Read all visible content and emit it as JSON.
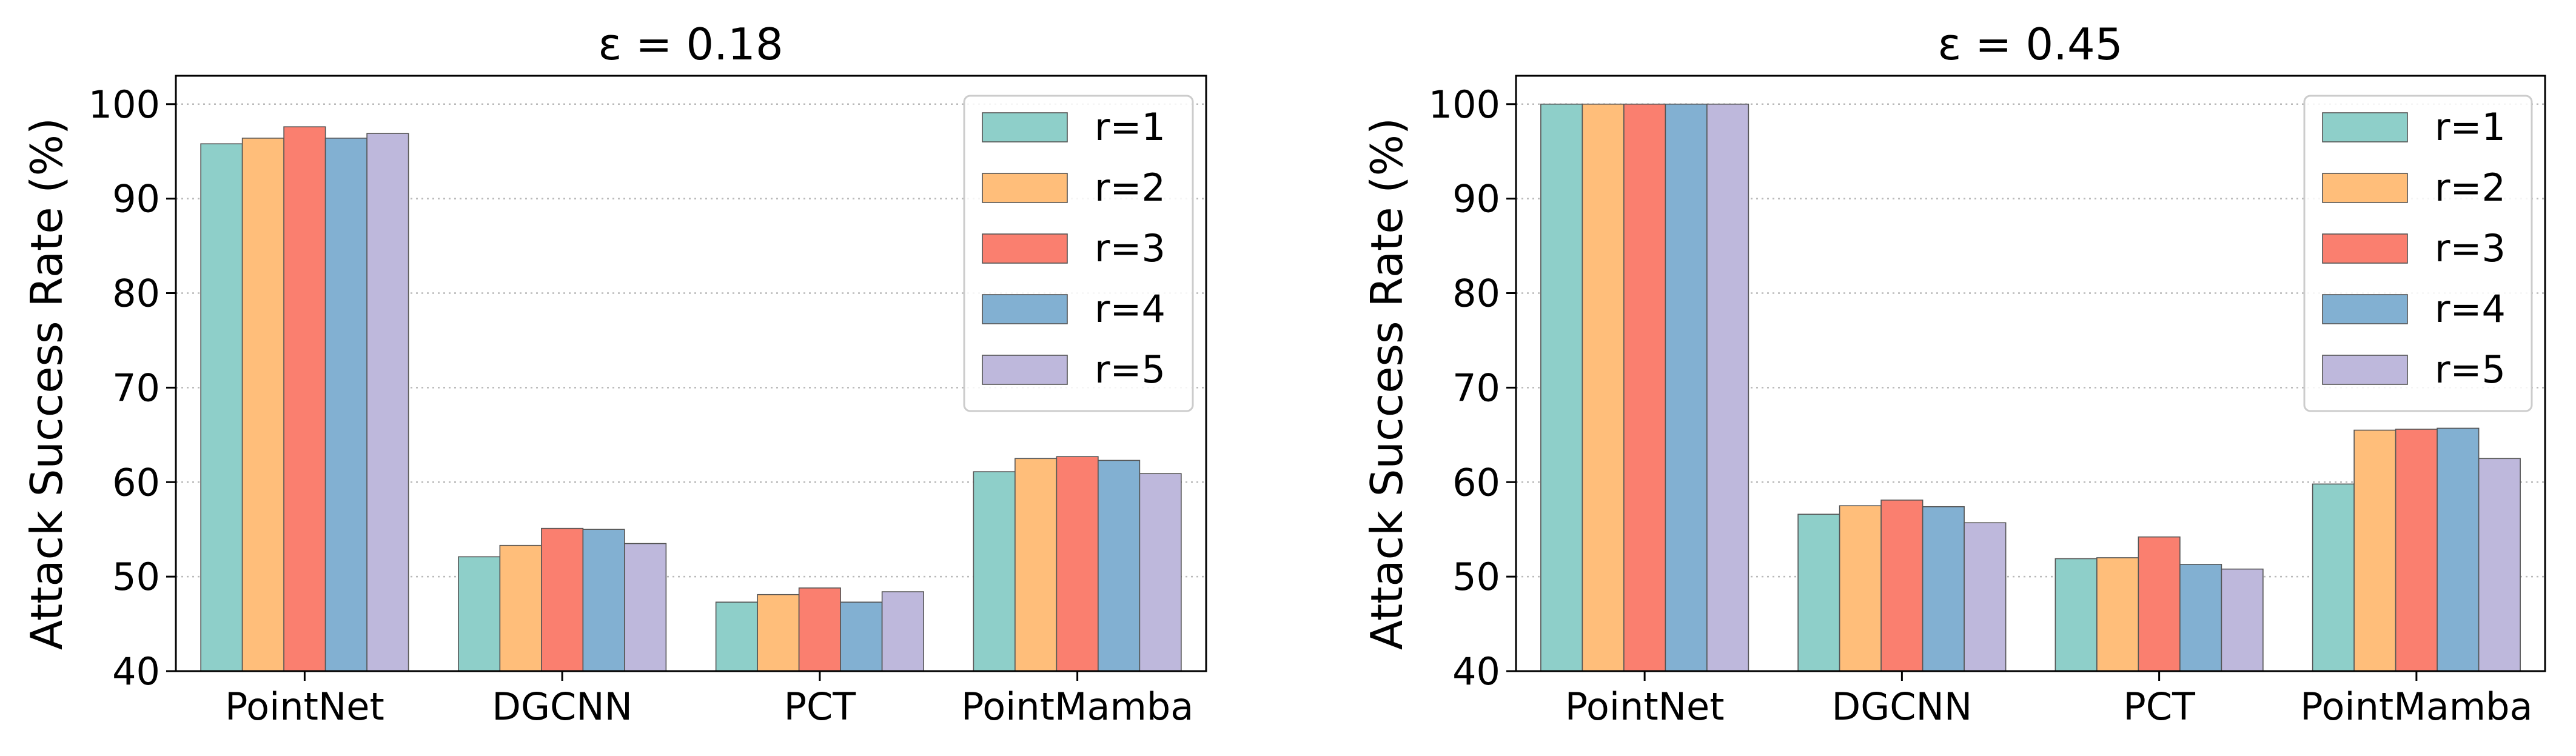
{
  "chart_data": [
    {
      "type": "bar",
      "title": "ε = 0.18",
      "xlabel": "",
      "ylabel": "Attack Success Rate (%)",
      "ylim": [
        40,
        103
      ],
      "yticks": [
        "40",
        "50",
        "60",
        "70",
        "80",
        "90",
        "100"
      ],
      "grid": "horizontal dotted",
      "legend": "top-right",
      "categories": [
        "PointNet",
        "DGCNN",
        "PCT",
        "PointMamba"
      ],
      "series": [
        {
          "name": "r=1",
          "color": "#8ECFC9",
          "values": [
            95.8,
            52.1,
            47.3,
            61.1
          ]
        },
        {
          "name": "r=2",
          "color": "#FFBE7A",
          "values": [
            96.4,
            53.3,
            48.1,
            62.5
          ]
        },
        {
          "name": "r=3",
          "color": "#FA7F6F",
          "values": [
            97.6,
            55.1,
            48.8,
            62.7
          ]
        },
        {
          "name": "r=4",
          "color": "#82B0D2",
          "values": [
            96.4,
            55.0,
            47.3,
            62.3
          ]
        },
        {
          "name": "r=5",
          "color": "#BEB8DC",
          "values": [
            96.9,
            53.5,
            48.4,
            60.9
          ]
        }
      ]
    },
    {
      "type": "bar",
      "title": "ε = 0.45",
      "xlabel": "",
      "ylabel": "Attack Success Rate (%)",
      "ylim": [
        40,
        103
      ],
      "yticks": [
        "40",
        "50",
        "60",
        "70",
        "80",
        "90",
        "100"
      ],
      "grid": "horizontal dotted",
      "legend": "top-right",
      "categories": [
        "PointNet",
        "DGCNN",
        "PCT",
        "PointMamba"
      ],
      "series": [
        {
          "name": "r=1",
          "color": "#8ECFC9",
          "values": [
            100.0,
            56.6,
            51.9,
            59.8
          ]
        },
        {
          "name": "r=2",
          "color": "#FFBE7A",
          "values": [
            100.0,
            57.5,
            52.0,
            65.5
          ]
        },
        {
          "name": "r=3",
          "color": "#FA7F6F",
          "values": [
            100.0,
            58.1,
            54.2,
            65.6
          ]
        },
        {
          "name": "r=4",
          "color": "#82B0D2",
          "values": [
            100.0,
            57.4,
            51.3,
            65.7
          ]
        },
        {
          "name": "r=5",
          "color": "#BEB8DC",
          "values": [
            100.0,
            55.7,
            50.8,
            62.5
          ]
        }
      ]
    }
  ]
}
